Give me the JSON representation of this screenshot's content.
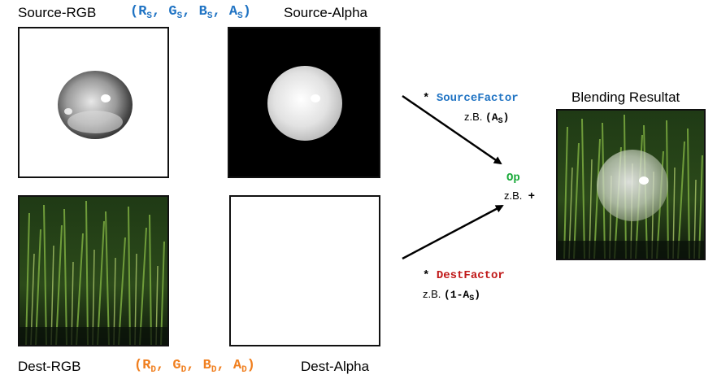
{
  "labels": {
    "source_rgb": "Source-RGB",
    "source_alpha": "Source-Alpha",
    "dest_rgb": "Dest-RGB",
    "dest_alpha": "Dest-Alpha",
    "blend_result": "Blending Resultat"
  },
  "source_tuple": {
    "open": "(",
    "r": "R",
    "g": "G",
    "b": "B",
    "a": "A",
    "sub": "S",
    "sep": ",",
    "close": ")"
  },
  "dest_tuple": {
    "open": "(",
    "r": "R",
    "g": "G",
    "b": "B",
    "a": "A",
    "sub": "D",
    "sep": ",",
    "close": ")"
  },
  "factors": {
    "star": "*",
    "source_factor": "SourceFactor",
    "source_example_prefix": "z.B.",
    "source_example_open": "(A",
    "source_example_sub": "S",
    "source_example_close": ")",
    "dest_factor": "DestFactor",
    "dest_example_prefix": "z.B.",
    "dest_example_open": "(1-A",
    "dest_example_sub": "S",
    "dest_example_close": ")"
  },
  "op": {
    "label": "Op",
    "example_prefix": "z.B.",
    "example_value": "+"
  },
  "colors": {
    "source_blue": "#1f73c3",
    "dest_orange": "#f07f1f",
    "op_green": "#1aaa3a",
    "dest_factor_red": "#c01818"
  }
}
